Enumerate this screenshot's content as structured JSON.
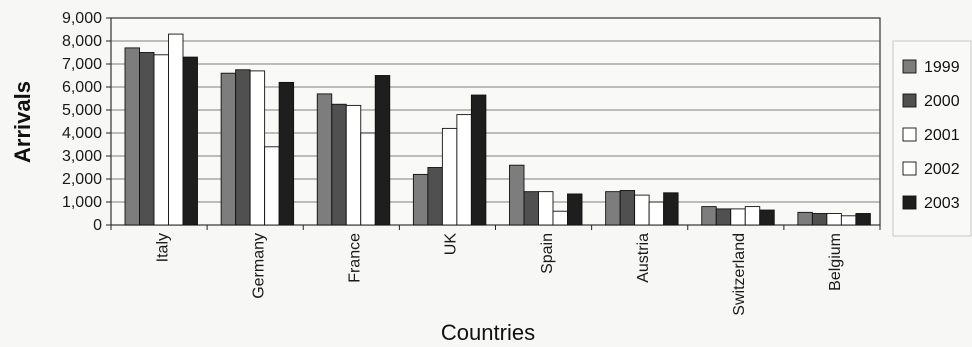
{
  "chart_data": {
    "type": "bar",
    "title": "",
    "xlabel": "Countries",
    "ylabel": "Arrivals",
    "ylim": [
      0,
      9000
    ],
    "yticks": [
      0,
      1000,
      2000,
      3000,
      4000,
      5000,
      6000,
      7000,
      8000,
      9000
    ],
    "ytick_labels": [
      "0",
      "1,000",
      "2,000",
      "3,000",
      "4,000",
      "5,000",
      "6,000",
      "7,000",
      "8,000",
      "9,000"
    ],
    "grid": true,
    "legend_position": "right",
    "categories": [
      "Italy",
      "Germany",
      "France",
      "UK",
      "Spain",
      "Austria",
      "Switzerland",
      "Belgium"
    ],
    "series": [
      {
        "name": "1999",
        "color": "#7d7d7d",
        "values": [
          7700,
          6600,
          5700,
          2200,
          2600,
          1450,
          800,
          550
        ]
      },
      {
        "name": "2000",
        "color": "#505050",
        "values": [
          7500,
          6750,
          5250,
          2500,
          1450,
          1500,
          700,
          500
        ]
      },
      {
        "name": "2001",
        "color": "#ffffff",
        "values": [
          7400,
          6700,
          5200,
          4200,
          1450,
          1300,
          700,
          500
        ]
      },
      {
        "name": "2002",
        "color": "#ffffff",
        "values": [
          8300,
          3400,
          4000,
          4800,
          600,
          1000,
          800,
          400
        ]
      },
      {
        "name": "2003",
        "color": "#1e1e1e",
        "values": [
          7300,
          6200,
          6500,
          5650,
          1350,
          1400,
          650,
          500
        ]
      }
    ]
  }
}
